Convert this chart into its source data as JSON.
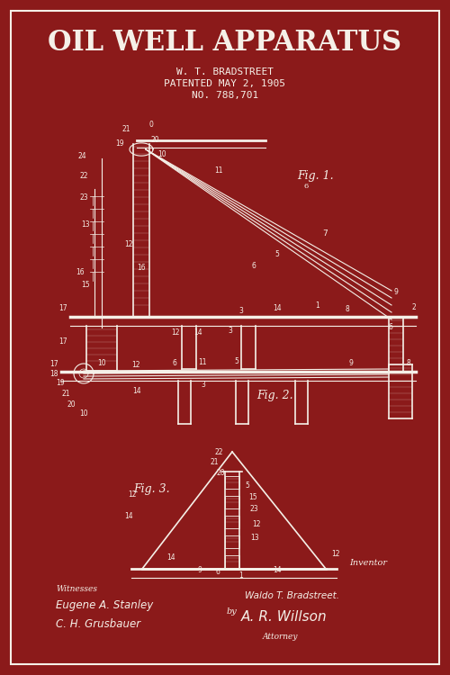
{
  "bg_color": "#8B1A1A",
  "line_color": "#F5F0E8",
  "title": "OIL WELL APPARATUS",
  "inventor_line": "W. T. BRADSTREET",
  "patent_line": "PATENTED MAY 2, 1905",
  "number_line": "NO. 788,701",
  "witnesses_label": "Witnesses",
  "witness1": "Eugene A. Stanley",
  "witness2": "C. H. Grusbauer",
  "inventor_label": "Inventor",
  "inventor_name": "Waldo T. Bradstreet.",
  "by_label": "by",
  "attorney_sig": "A. R. Willson",
  "attorney_label": "Attorney",
  "fig1_label": "Fig. 1.",
  "fig2_label": "Fig. 2.",
  "fig3_label": "Fig. 3.",
  "border_color": "#F5F0E8"
}
